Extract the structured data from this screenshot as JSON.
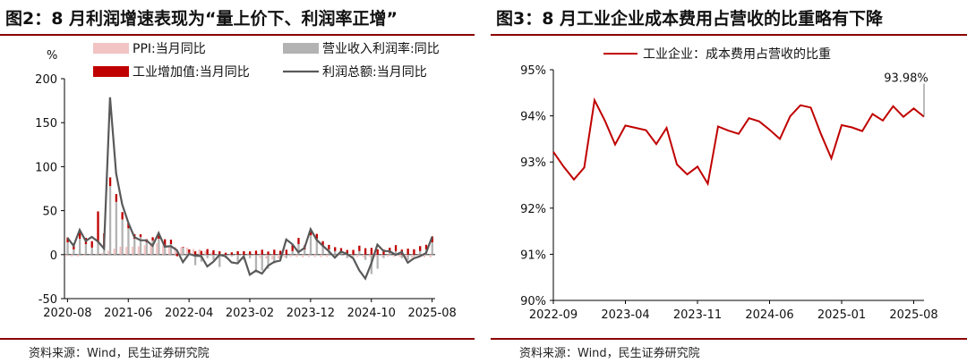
{
  "left": {
    "title": "图2：8 月利润增速表现为“量上价下、利润率正增”",
    "source": "资料来源：Wind，民生证券研究院",
    "chart_data": {
      "type": "bar",
      "unit_label": "%",
      "ylim": [
        -50,
        200
      ],
      "y_ticks": [
        -50,
        0,
        50,
        100,
        150,
        200
      ],
      "x_tick_labels": [
        "2020-08",
        "2021-06",
        "2022-04",
        "2023-02",
        "2023-12",
        "2024-10",
        "2025-08"
      ],
      "x_tick_index": [
        0,
        10,
        20,
        30,
        40,
        50,
        60
      ],
      "legend": [
        "PPI:当月同比",
        "营业收入利润率:同比",
        "工业增加值:当月同比",
        "利润总额:当月同比"
      ],
      "series": [
        {
          "name": "PPI:当月同比",
          "kind": "bar",
          "color": "#f2c4c4",
          "values": [
            -2.0,
            -2.1,
            -2.1,
            -1.5,
            -0.4,
            0.3,
            1.7,
            4.4,
            6.8,
            9.0,
            8.8,
            9.0,
            9.5,
            10.7,
            13.5,
            12.9,
            10.3,
            9.1,
            8.8,
            8.3,
            8.0,
            6.4,
            6.1,
            4.2,
            2.3,
            0.9,
            -1.3,
            -1.3,
            -0.8,
            -0.8,
            1.4,
            -1.4,
            -3.6,
            -4.6,
            -5.4,
            -4.4,
            -3.0,
            -2.5,
            -2.6,
            -3.0,
            -2.7,
            -2.7,
            -2.8,
            -2.5,
            -1.4,
            -0.8,
            -0.8,
            -1.8,
            -2.8,
            -2.9,
            -2.5,
            -2.3,
            -2.2,
            -2.3,
            -2.5,
            -2.7,
            -3.3,
            -3.6,
            -3.6,
            -2.9,
            -2.9
          ],
          "comment": ""
        },
        {
          "name": "营业收入利润率:同比",
          "kind": "bar",
          "color": "#b3b3b3",
          "values": [
            14,
            6,
            18,
            12,
            8,
            14,
            10,
            78,
            60,
            40,
            30,
            18,
            20,
            14,
            16,
            18,
            10,
            12,
            4,
            8,
            2,
            -12,
            -8,
            -4,
            -6,
            -14,
            -4,
            -2,
            -8,
            -6,
            -4,
            -20,
            -18,
            -16,
            -10,
            -6,
            -4,
            4,
            12,
            6,
            22,
            18,
            10,
            6,
            4,
            2,
            -4,
            -2,
            4,
            -6,
            -22,
            -16,
            -4,
            2,
            4,
            -4,
            -6,
            -2,
            4,
            6,
            14
          ]
        },
        {
          "name": "工业增加值:当月同比",
          "kind": "bar",
          "color": "#c00000",
          "values": [
            5.6,
            6.9,
            6.9,
            7.0,
            7.3,
            35.1,
            14.1,
            9.8,
            8.8,
            8.3,
            6.4,
            5.3,
            3.1,
            3.5,
            3.8,
            4.3,
            7.5,
            5.0,
            -2.9,
            0.7,
            3.9,
            3.8,
            4.2,
            6.3,
            5.0,
            3.8,
            2.2,
            2.6,
            3.9,
            3.9,
            3.7,
            4.5,
            5.6,
            3.5,
            5.6,
            4.4,
            5.6,
            6.8,
            7.0,
            4.5,
            6.7,
            5.6,
            5.3,
            5.1,
            4.5,
            5.4,
            5.3,
            5.4,
            6.2,
            7.3,
            7.7,
            6.1,
            5.8,
            5.8,
            6.8,
            5.7,
            6.8,
            6.1,
            5.7,
            5.2,
            6.8
          ]
        },
        {
          "name": "利润总额:当月同比",
          "kind": "line",
          "color": "#595959",
          "values": [
            19.1,
            10.1,
            28.2,
            15.5,
            20.1,
            15.0,
            7.0,
            178.9,
            92.3,
            57.0,
            36.4,
            20.0,
            16.4,
            16.3,
            10.1,
            24.6,
            9.0,
            9.7,
            5.0,
            -8.5,
            0.8,
            -1.2,
            -1.6,
            -13.4,
            -8.0,
            -0.3,
            -1.8,
            -8.8,
            -10.0,
            -1.9,
            -22.9,
            -18.2,
            -21.5,
            -12.6,
            -8.3,
            -6.7,
            17.2,
            11.9,
            2.7,
            7.7,
            29.0,
            16.8,
            10.2,
            4.0,
            -3.5,
            3.6,
            0.7,
            -4.1,
            -17.8,
            -27.1,
            -10.0,
            11.4,
            4.2,
            4.0,
            -0.3,
            3.0,
            -9.1,
            -4.3,
            -1.8,
            1.7,
            20.4
          ]
        }
      ]
    }
  },
  "right": {
    "title": "图3：8 月工业企业成本费用占营收的比重略有下降",
    "source": "资料来源：Wind，民生证券研究院",
    "chart_data": {
      "type": "line",
      "ylim": [
        90,
        95
      ],
      "y_ticks": [
        90,
        91,
        92,
        93,
        94,
        95
      ],
      "y_tick_labels": [
        "90%",
        "91%",
        "92%",
        "93%",
        "94%",
        "95%"
      ],
      "x_tick_labels": [
        "2022-09",
        "2023-04",
        "2023-11",
        "2024-06",
        "2025-01",
        "2025-08"
      ],
      "x_tick_index": [
        0,
        7,
        14,
        21,
        28,
        35
      ],
      "legend": [
        "工业企业：成本费用占营收的比重"
      ],
      "annotation": "93.98%",
      "series": [
        {
          "name": "工业企业：成本费用占营收的比重",
          "color": "#c00000",
          "values": [
            93.22,
            92.9,
            92.62,
            92.88,
            94.34,
            93.9,
            93.38,
            93.79,
            93.74,
            93.69,
            93.39,
            93.74,
            92.95,
            92.73,
            92.9,
            92.53,
            93.77,
            93.68,
            93.61,
            93.95,
            93.88,
            93.7,
            93.5,
            93.99,
            94.23,
            94.18,
            93.6,
            93.08,
            93.8,
            93.75,
            93.67,
            94.04,
            93.9,
            94.21,
            93.98,
            94.16,
            93.98
          ]
        }
      ]
    }
  }
}
